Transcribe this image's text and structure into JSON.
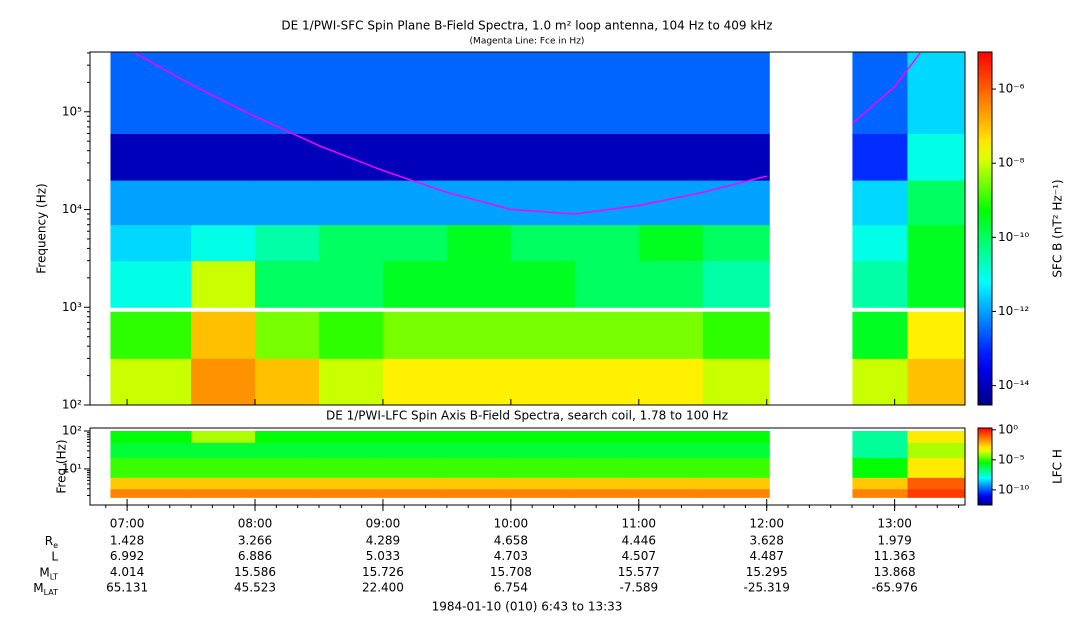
{
  "chart_data": [
    {
      "type": "heatmap",
      "title": "DE 1/PWI-SFC  Spin Plane B-Field Spectra, 1.0 m² loop antenna, 104 Hz to 409 kHz",
      "subtitle": "(Magenta Line: Fce in Hz)",
      "y_label": "Frequency (Hz)",
      "y_log": true,
      "xlim": [
        6.71,
        13.55
      ],
      "xticks": [
        {
          "value": 7,
          "label": "07:00"
        },
        {
          "value": 8,
          "label": "08:00"
        },
        {
          "value": 9,
          "label": "09:00"
        },
        {
          "value": 10,
          "label": "10:00"
        },
        {
          "value": 11,
          "label": "11:00"
        },
        {
          "value": 12,
          "label": "12:00"
        },
        {
          "value": 13,
          "label": "13:00"
        }
      ],
      "ylim": [
        100,
        409000
      ],
      "yticks": [
        {
          "value": 100,
          "label": "10²"
        },
        {
          "value": 1000,
          "label": "10³"
        },
        {
          "value": 10000,
          "label": "10⁴"
        },
        {
          "value": 100000,
          "label": "10⁵"
        }
      ],
      "x_edges": [
        6.87,
        7.5,
        8.0,
        8.5,
        9.0,
        9.5,
        10.0,
        10.5,
        11.0,
        11.5,
        12.02,
        12.67,
        13.1,
        13.55
      ],
      "y_edges": [
        100,
        300,
        900,
        1000,
        3000,
        7000,
        20000,
        60000,
        409000
      ],
      "z": [
        [
          1e-08,
          3e-07,
          1e-07,
          1e-08,
          3e-08,
          3e-08,
          3e-08,
          3e-08,
          3e-08,
          1e-08,
          null,
          1e-08,
          1e-07
        ],
        [
          1e-09,
          1e-07,
          3e-09,
          1e-09,
          3e-09,
          3e-09,
          3e-09,
          3e-09,
          3e-09,
          1e-09,
          null,
          3e-10,
          3e-08
        ],
        [
          null,
          null,
          null,
          null,
          null,
          null,
          null,
          null,
          null,
          null,
          null,
          null,
          null
        ],
        [
          1e-11,
          1e-08,
          1e-10,
          1e-10,
          3e-10,
          3e-10,
          3e-10,
          1e-10,
          1e-10,
          3e-11,
          null,
          3e-11,
          3e-10
        ],
        [
          3e-12,
          1e-11,
          3e-11,
          1e-10,
          1e-10,
          3e-10,
          1e-10,
          1e-10,
          3e-10,
          1e-10,
          null,
          1e-11,
          3e-10
        ],
        [
          1e-12,
          1e-12,
          1e-12,
          1e-12,
          1e-12,
          1e-12,
          1e-12,
          1e-12,
          1e-12,
          1e-12,
          null,
          3e-12,
          1e-10
        ],
        [
          1e-14,
          1e-14,
          1e-14,
          1e-14,
          1e-14,
          1e-14,
          1e-14,
          1e-14,
          1e-14,
          1e-14,
          null,
          1e-13,
          1e-11
        ],
        [
          3e-13,
          3e-13,
          3e-13,
          3e-13,
          3e-13,
          3e-13,
          3e-13,
          3e-13,
          3e-13,
          3e-13,
          null,
          3e-13,
          3e-12
        ]
      ],
      "colorbar_label": "SFC B (nT² Hz⁻¹)",
      "clim": [
        3e-15,
        1e-05
      ],
      "cticks": [
        {
          "value": 1e-06,
          "label": "10⁻⁶"
        },
        {
          "value": 1e-08,
          "label": "10⁻⁸"
        },
        {
          "value": 1e-10,
          "label": "10⁻¹⁰"
        },
        {
          "value": 1e-12,
          "label": "10⁻¹²"
        },
        {
          "value": 1e-14,
          "label": "10⁻¹⁴"
        }
      ],
      "line": {
        "color": "#ff00ff",
        "x": [
          7.06,
          7.5,
          8.0,
          8.5,
          9.0,
          9.5,
          10.0,
          10.5,
          11.0,
          11.5,
          12.0,
          12.33,
          12.67,
          13.0,
          13.2
        ],
        "y": [
          400000,
          190000,
          90000,
          45000,
          25000,
          15000,
          10000,
          9000,
          11000,
          15000,
          22000,
          null,
          76000,
          180000,
          400000
        ]
      }
    },
    {
      "type": "heatmap",
      "title": "DE 1/PWI-LFC  Spin Axis B-Field Spectra, search coil, 1.78 to 100 Hz",
      "y_label": "Freq (Hz)",
      "y_log": true,
      "xlim": [
        6.71,
        13.55
      ],
      "ylim": [
        1.12,
        120
      ],
      "yticks": [
        {
          "value": 10,
          "label": "10¹"
        },
        {
          "value": 100,
          "label": "10²"
        }
      ],
      "x_edges": [
        6.87,
        7.5,
        8.0,
        8.5,
        9.0,
        9.5,
        10.0,
        10.5,
        11.0,
        11.5,
        12.02,
        12.67,
        13.1,
        13.55
      ],
      "y_edges": [
        1.78,
        3,
        6,
        20,
        50,
        100
      ],
      "z": [
        [
          0.03,
          0.03,
          0.03,
          0.03,
          0.03,
          0.03,
          0.03,
          0.03,
          0.03,
          0.03,
          null,
          0.03,
          0.3
        ],
        [
          0.003,
          0.003,
          0.003,
          0.003,
          0.003,
          0.003,
          0.003,
          0.003,
          0.003,
          0.003,
          null,
          0.003,
          0.1
        ],
        [
          1e-05,
          1e-05,
          1e-05,
          1e-05,
          1e-05,
          1e-05,
          1e-05,
          1e-05,
          1e-05,
          1e-05,
          null,
          3e-06,
          0.001
        ],
        [
          1e-06,
          1e-06,
          1e-06,
          1e-06,
          1e-06,
          1e-06,
          1e-06,
          1e-06,
          1e-06,
          1e-06,
          null,
          1e-07,
          0.0001
        ],
        [
          3e-06,
          0.0001,
          3e-06,
          3e-06,
          3e-06,
          3e-06,
          3e-06,
          3e-06,
          3e-06,
          3e-06,
          null,
          1e-07,
          0.001
        ]
      ],
      "colorbar_label": "LFC H",
      "clim": [
        3e-13,
        2
      ],
      "cticks": [
        {
          "value": 1,
          "label": "10⁰"
        },
        {
          "value": 1e-05,
          "label": "10⁻⁵"
        },
        {
          "value": 1e-10,
          "label": "10⁻¹⁰"
        }
      ]
    }
  ],
  "ephemeris": {
    "rows": [
      {
        "label": "R",
        "sub": "e",
        "values": [
          "1.428",
          "3.266",
          "4.289",
          "4.658",
          "4.446",
          "3.628",
          "1.979"
        ]
      },
      {
        "label": "L",
        "sub": null,
        "values": [
          "6.992",
          "6.886",
          "5.033",
          "4.703",
          "4.507",
          "4.487",
          "11.363"
        ]
      },
      {
        "label": "M",
        "sub": "LT",
        "values": [
          "4.014",
          "15.586",
          "15.726",
          "15.708",
          "15.577",
          "15.295",
          "13.868"
        ]
      },
      {
        "label": "M",
        "sub": "LAT",
        "values": [
          "65.131",
          "45.523",
          "22.400",
          "6.754",
          "-7.589",
          "-25.319",
          "-65.976"
        ]
      }
    ]
  },
  "footer": "1984-01-10 (010) 6:43 to 13:33"
}
